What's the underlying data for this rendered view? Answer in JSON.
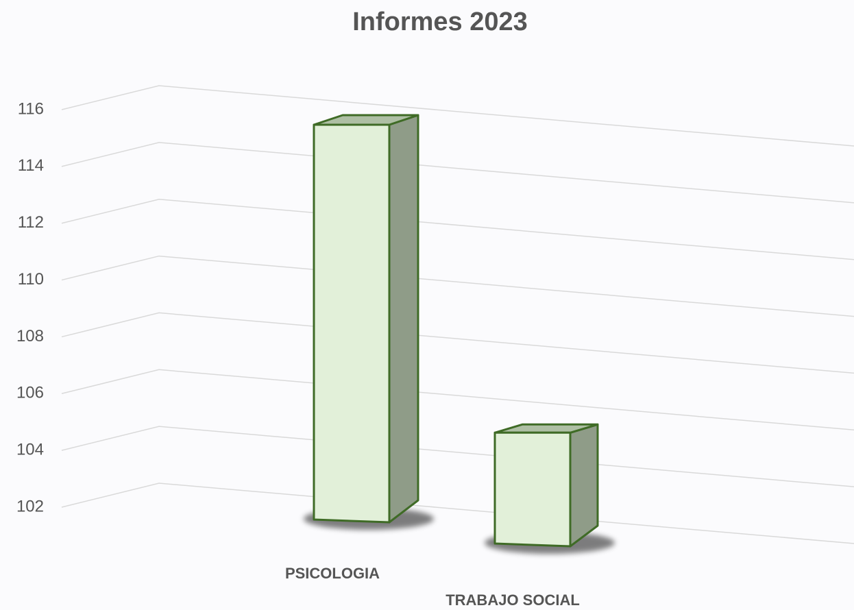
{
  "chart_data": {
    "type": "bar3d",
    "title": "Informes 2023",
    "categories": [
      "PSICOLOGIA",
      "TRABAJO SOCIAL"
    ],
    "values": [
      116,
      106
    ],
    "color": "#e2f0d9",
    "side_color": "#8f9c88",
    "top_color": "#aebfa4",
    "edge_color": "#3f6b26",
    "ylim": [
      102,
      116
    ],
    "yticks": [
      102,
      104,
      106,
      108,
      110,
      112,
      114,
      116
    ],
    "grid": true
  }
}
